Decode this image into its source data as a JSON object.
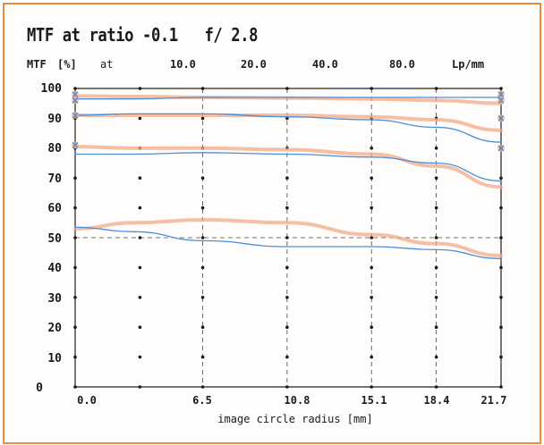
{
  "chart_data": {
    "type": "line",
    "title": "MTF at ratio -0.1   f/ 2.8",
    "header_row": {
      "mtf_label": "MTF",
      "unit_label": "[%]",
      "at_label": "at",
      "frequencies": [
        "10.0",
        "20.0",
        "40.0",
        "80.0"
      ],
      "freq_unit": "Lp/mm"
    },
    "xlabel": "image circle radius [mm]",
    "x_ticks": [
      "0.0",
      "6.5",
      "10.8",
      "15.1",
      "18.4",
      "21.7"
    ],
    "y_ticks": [
      "100",
      "90",
      "80",
      "70",
      "60",
      "50",
      "40",
      "30",
      "20",
      "10",
      "0"
    ],
    "xlim": [
      0,
      21.7
    ],
    "ylim": [
      0,
      100
    ],
    "dashed_vertical_x": [
      6.5,
      10.8,
      15.1,
      18.4
    ],
    "dashed_horizontal_y": [
      50
    ],
    "colors": {
      "sagittal": "#f2a98a",
      "tangential": "#4a8fd9",
      "frame": "#f08a3a"
    },
    "series": [
      {
        "freq": "10.0",
        "line": "sagittal",
        "x": [
          0,
          3,
          6.5,
          10.8,
          15.1,
          18.4,
          21.7
        ],
        "y": [
          97.5,
          97.3,
          97,
          96.8,
          96.5,
          96,
          95
        ]
      },
      {
        "freq": "10.0",
        "line": "tangential",
        "x": [
          0,
          3,
          6.5,
          10.8,
          15.1,
          18.4,
          21.7
        ],
        "y": [
          96.5,
          96.5,
          97,
          97,
          97,
          97,
          97
        ]
      },
      {
        "freq": "20.0",
        "line": "sagittal",
        "x": [
          0,
          3,
          6.5,
          10.8,
          15.1,
          18.4,
          21.7
        ],
        "y": [
          91,
          91,
          91,
          91,
          90.5,
          89.5,
          86
        ]
      },
      {
        "freq": "20.0",
        "line": "tangential",
        "x": [
          0,
          3,
          6.5,
          10.8,
          15.1,
          18.4,
          21.7
        ],
        "y": [
          91,
          91.5,
          91.5,
          90.5,
          89.5,
          87,
          82
        ]
      },
      {
        "freq": "40.0",
        "line": "sagittal",
        "x": [
          0,
          3,
          6.5,
          10.8,
          15.1,
          18.4,
          21.7
        ],
        "y": [
          80.5,
          80,
          80,
          79.5,
          78,
          74,
          67
        ]
      },
      {
        "freq": "40.0",
        "line": "tangential",
        "x": [
          0,
          3,
          6.5,
          10.8,
          15.1,
          18.4,
          21.7
        ],
        "y": [
          78,
          78,
          78.5,
          78,
          77,
          75,
          69
        ]
      },
      {
        "freq": "80.0",
        "line": "sagittal",
        "x": [
          0,
          3,
          6.5,
          10.8,
          15.1,
          18.4,
          21.7
        ],
        "y": [
          53,
          55,
          56,
          55,
          51,
          48,
          44
        ]
      },
      {
        "freq": "80.0",
        "line": "tangential",
        "x": [
          0,
          3,
          6.5,
          10.8,
          15.1,
          18.4,
          21.7
        ],
        "y": [
          53.5,
          52,
          49,
          47,
          47,
          46,
          43
        ]
      }
    ],
    "x_markers": [
      {
        "x": 0,
        "y": [
          98,
          96,
          91,
          81
        ]
      },
      {
        "x": 21.7,
        "y": [
          98,
          96,
          90,
          80
        ]
      }
    ]
  }
}
